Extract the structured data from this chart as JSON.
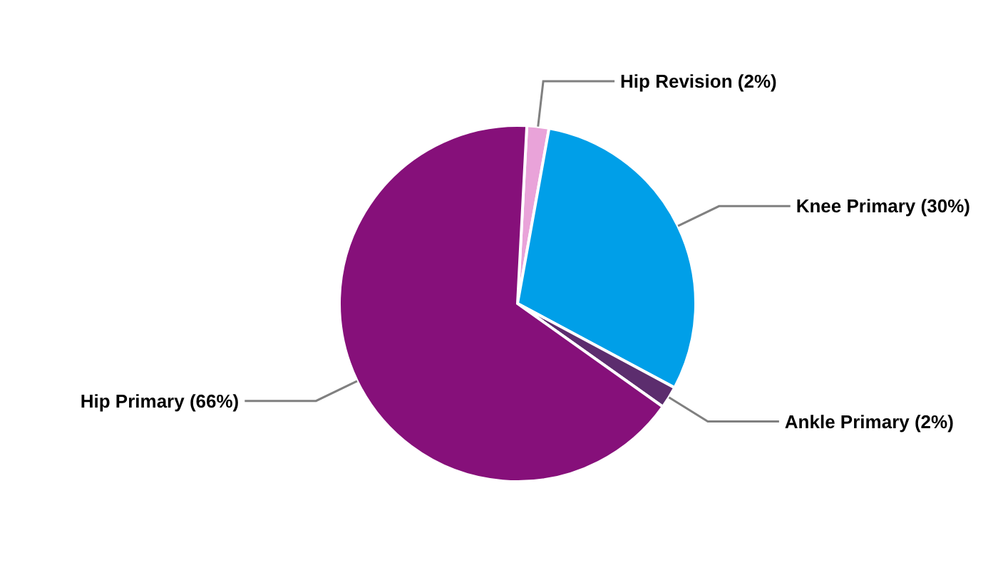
{
  "chart_data": {
    "type": "pie",
    "categories": [
      "Hip Revision (2%)",
      "Knee Primary (30%)",
      "Ankle Primary (2%)",
      "Hip Primary (66%)"
    ],
    "values": [
      2,
      30,
      2,
      66
    ],
    "colors": [
      "#e9a3d9",
      "#009fe8",
      "#5c2d6e",
      "#86107a"
    ],
    "legend": false
  }
}
